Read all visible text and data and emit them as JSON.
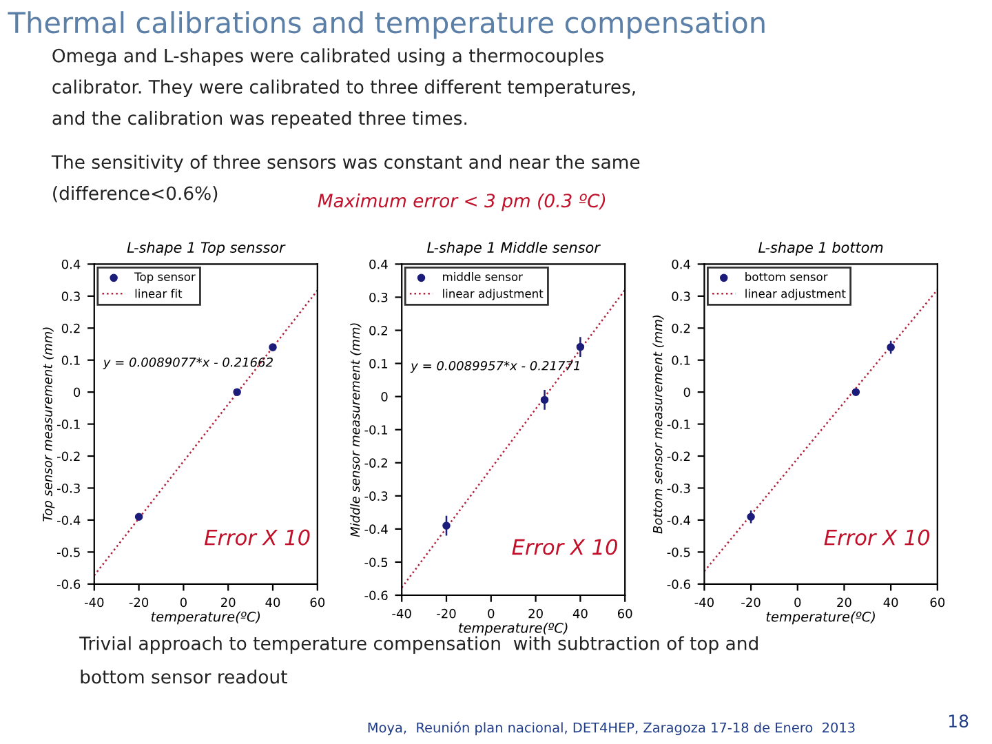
{
  "chart_data": [
    {
      "type": "other",
      "title": "Thermal calibrations and temperature compensation",
      "annotations": [
        "Omega and L-shapes were calibrated using a thermocouples",
        "calibrator. They were calibrated to three different temperatures,",
        "and the calibration was repeated three times.",
        "The sensitivity of three sensors was constant and near the same",
        "(difference<0.6%)",
        "Maximum error < 3 pm (0.3 ºC)",
        "Trivial approach to temperature compensation  with subtraction of top and",
        "bottom sensor readout",
        "Moya,  Reunión plan nacional, DET4HEP, Zaragoza 17-18 de Enero  2013",
        "18"
      ]
    },
    {
      "type": "scatter",
      "title": "L-shape 1 Top senssor",
      "xlabel": "temperature(ºC)",
      "ylabel": "Top sensor measurement (mm)",
      "xlim": [
        -40,
        60
      ],
      "xticks": [
        -40,
        -20,
        0,
        20,
        40,
        60
      ],
      "ylim": [
        -0.6,
        0.4
      ],
      "yticks": [
        -0.6,
        -0.5,
        -0.4,
        -0.3,
        -0.2,
        -0.1,
        0,
        0.1,
        0.2,
        0.3,
        0.4
      ],
      "grid": false,
      "legend": "top left",
      "annotations": [
        "y = 0.0089077*x - 0.21662",
        "Error X 10"
      ],
      "series": [
        {
          "name": "Top sensor",
          "type": "scatter",
          "marker": "circle",
          "color": "#1c1c7a",
          "x": [
            -20,
            24,
            40
          ],
          "values": [
            -0.39,
            0.0,
            0.14
          ]
        },
        {
          "name": "linear fit",
          "type": "line",
          "line_style": "dotted",
          "color": "#b0203a",
          "x": [
            -40,
            60
          ],
          "values": [
            -0.573,
            0.318
          ]
        }
      ]
    },
    {
      "type": "scatter",
      "title": "L-shape 1 Middle sensor",
      "xlabel": "temperature(ºC)",
      "ylabel": "Middle sensor measurement (mm)",
      "xlim": [
        -40,
        60
      ],
      "xticks": [
        -40,
        -20,
        0,
        20,
        40,
        60
      ],
      "ylim": [
        -0.6,
        0.4
      ],
      "yticks": [
        -0.6,
        -0.5,
        -0.4,
        -0.3,
        -0.2,
        -0.1,
        0,
        0.1,
        0.2,
        0.3,
        0.4
      ],
      "grid": false,
      "legend": "top left",
      "annotations": [
        "y = 0.0089957*x - 0.21771",
        "Error X 10"
      ],
      "series": [
        {
          "name": "middle sensor",
          "type": "scatter",
          "marker": "circle",
          "color": "#1c1c7a",
          "x": [
            -20,
            24,
            40
          ],
          "values": [
            -0.39,
            -0.01,
            0.15
          ],
          "errors": [
            0.03,
            0.03,
            0.03
          ]
        },
        {
          "name": "linear adjustment",
          "type": "line",
          "line_style": "dotted",
          "color": "#b0203a",
          "x": [
            -40,
            60
          ],
          "values": [
            -0.577,
            0.322
          ]
        }
      ]
    },
    {
      "type": "scatter",
      "title": "L-shape 1 bottom",
      "xlabel": "temperature(ºC)",
      "ylabel": "Bottom sensor measurement (mm)",
      "xlim": [
        -40,
        60
      ],
      "xticks": [
        -40,
        -20,
        0,
        20,
        40,
        60
      ],
      "ylim": [
        -0.6,
        0.4
      ],
      "yticks": [
        -0.6,
        -0.5,
        -0.4,
        -0.3,
        -0.2,
        -0.1,
        0,
        0.1,
        0.2,
        0.3,
        0.4
      ],
      "grid": false,
      "legend": "top left",
      "annotations": [
        "Error X 10"
      ],
      "series": [
        {
          "name": "bottom sensor",
          "type": "scatter",
          "marker": "circle",
          "color": "#1c1c7a",
          "x": [
            -20,
            25,
            40
          ],
          "values": [
            -0.39,
            0.0,
            0.14
          ],
          "errors": [
            0.02,
            null,
            0.02
          ]
        },
        {
          "name": "linear adjustment",
          "type": "line",
          "line_style": "dotted",
          "color": "#b0203a",
          "x": [
            -40,
            60
          ],
          "values": [
            -0.56,
            0.32
          ]
        }
      ]
    }
  ]
}
